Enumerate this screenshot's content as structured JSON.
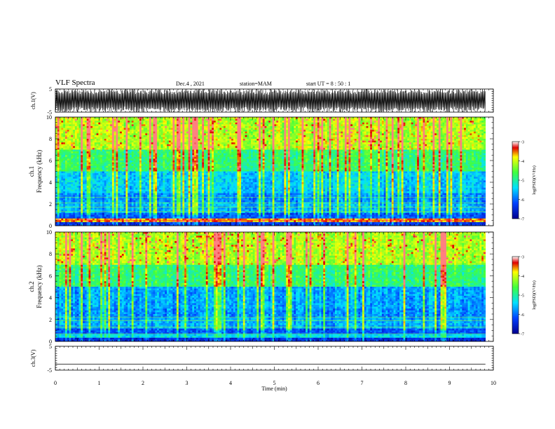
{
  "header": {
    "title": "VLF Spectra",
    "date": "Dec.4 , 2021",
    "station": "station=MAM",
    "start": "start  UT =  8 : 50 : 1"
  },
  "colors": {
    "low": "#00008f",
    "mid_low": "#0040ff",
    "mid": "#00e0ff",
    "mid_high": "#3fff3f",
    "high": "#ffff00",
    "max": "#e00000"
  },
  "chart_data": [
    {
      "type": "line",
      "ylabel": "ch.1(V)",
      "ylim": [
        -5,
        5
      ],
      "yticks": [
        "5",
        "-5"
      ],
      "description_series": "dense oscillating waveform spanning full range"
    },
    {
      "type": "heatmap",
      "ylabel_top": "ch.1",
      "ylabel": "Frequency (kHz)",
      "ylim": [
        0,
        10
      ],
      "yticks": [
        "0",
        "2",
        "4",
        "6",
        "8",
        "10"
      ],
      "colorbar": {
        "ticks": [
          "-3",
          "-4",
          "-5",
          "-6",
          "-7"
        ],
        "label": "log(PSD)(V²/Hz)"
      }
    },
    {
      "type": "heatmap",
      "ylabel_top": "ch.2",
      "ylabel": "Frequency (kHz)",
      "ylim": [
        0,
        10
      ],
      "yticks": [
        "0",
        "2",
        "4",
        "6",
        "8",
        "10"
      ],
      "colorbar": {
        "ticks": [
          "-3",
          "-4",
          "-5",
          "-6",
          "-7"
        ],
        "label": "log(PSD)(V²/Hz)"
      }
    },
    {
      "type": "line",
      "ylabel": "ch.3(V)",
      "ylim": [
        -5,
        5
      ],
      "yticks": [
        "5",
        "-5"
      ],
      "values_constant": -2.5
    }
  ],
  "xaxis": {
    "label": "Time (min)",
    "ticks": [
      "0",
      "1",
      "2",
      "3",
      "4",
      "5",
      "6",
      "7",
      "8",
      "9",
      "10"
    ],
    "range": [
      0,
      10
    ]
  }
}
